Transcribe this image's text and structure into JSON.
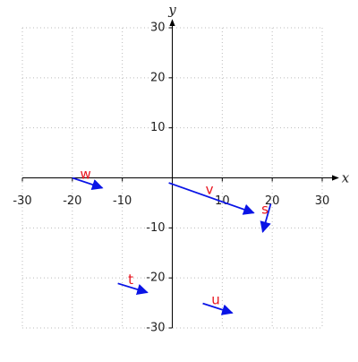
{
  "chart_data": {
    "type": "vector",
    "x_label": "x",
    "y_label": "y",
    "xlim": [
      -30,
      30
    ],
    "ylim": [
      -30,
      30
    ],
    "xticks": [
      -30,
      -20,
      -10,
      10,
      20,
      30
    ],
    "yticks": [
      -30,
      -20,
      -10,
      10,
      20,
      30
    ],
    "grid": true,
    "color": "#0a14e6",
    "label_color": "#e8141e",
    "vectors": [
      {
        "name": "w",
        "x": -20,
        "y": 0,
        "x_end": -14,
        "y_end": -2
      },
      {
        "name": "v",
        "x": -0.7,
        "y": -1,
        "x_end": 16.3,
        "y_end": -7
      },
      {
        "name": "s",
        "x": 19.7,
        "y": -5.2,
        "x_end": 18.1,
        "y_end": -10.8
      },
      {
        "name": "t",
        "x": -10.9,
        "y": -21.1,
        "x_end": -5,
        "y_end": -22.9
      },
      {
        "name": "u",
        "x": 6.1,
        "y": -25.1,
        "x_end": 12,
        "y_end": -27
      }
    ]
  }
}
